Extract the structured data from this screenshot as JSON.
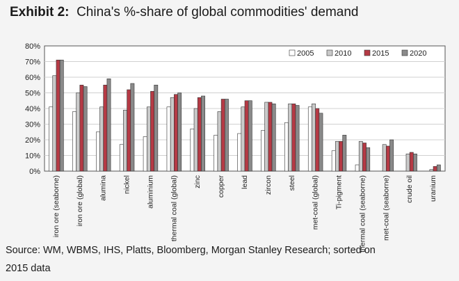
{
  "exhibit_label": "Exhibit 2:",
  "title_text": "China's %-share of global commodities' demand",
  "source_line1": "Source: WM, WBMS, IHS, Platts, Bloomberg, Morgan Stanley Research; sorted on",
  "source_line2": "2015 data",
  "colors": {
    "2005": "#ffffff",
    "2010": "#c9c9c9",
    "2015": "#b53a45",
    "2020": "#8a8a8a"
  },
  "chart_data": {
    "type": "bar",
    "title": "China's %-share of global commodities' demand",
    "xlabel": "",
    "ylabel": "",
    "ylim": [
      0,
      80
    ],
    "yticks": [
      "0%",
      "10%",
      "20%",
      "30%",
      "40%",
      "50%",
      "60%",
      "70%",
      "80%"
    ],
    "categories": [
      "iron ore (seaborne)",
      "iron ore (global)",
      "alumina",
      "nickel",
      "aluminium",
      "thermal coal (global)",
      "zinc",
      "copper",
      "lead",
      "zircon",
      "steel",
      "met-coal (global)",
      "Ti-pigment",
      "thermal coal (seaborne)",
      "met-coal (seaborne)",
      "crude oil",
      "uranium"
    ],
    "legend_position": "top-right",
    "series": [
      {
        "name": "2005",
        "values": [
          41,
          38,
          25,
          17,
          22,
          41,
          27,
          23,
          24,
          26,
          31,
          41,
          13,
          4,
          0,
          0,
          0
        ]
      },
      {
        "name": "2010",
        "values": [
          61,
          50,
          41,
          39,
          41,
          47,
          40,
          38,
          41,
          44,
          43,
          43,
          19,
          19,
          17,
          11,
          1
        ]
      },
      {
        "name": "2015",
        "values": [
          71,
          55,
          55,
          52,
          51,
          49,
          47,
          46,
          45,
          44,
          43,
          40,
          19,
          18,
          16,
          12,
          3
        ]
      },
      {
        "name": "2020",
        "values": [
          71,
          54,
          59,
          56,
          55,
          50,
          48,
          46,
          45,
          43,
          42,
          37,
          23,
          15,
          20,
          11,
          4
        ]
      }
    ]
  }
}
